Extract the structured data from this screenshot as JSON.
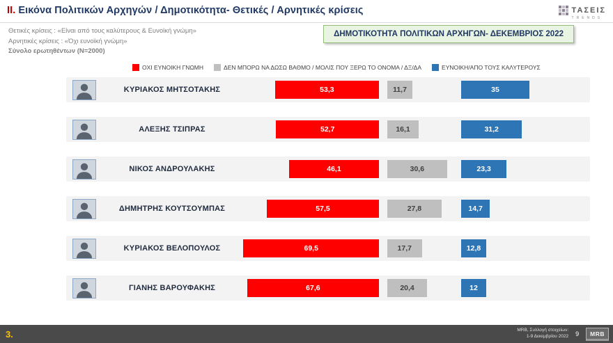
{
  "header": {
    "title_prefix": "II.",
    "title": "Εικόνα Πολιτικών Αρχηγών  / Δημοτικότητα- Θετικές / Αρνητικές κρίσεις",
    "subtitle1": "Θετικές κρίσεις : «Είναι από τους καλύτερους &  Ευνοϊκή γνώμη»",
    "subtitle2": "Αρνητικές κρίσεις : «Όχι ευνοϊκή γνώμη»",
    "subtitle3": "Σύνολο ερωτηθέντων (N=2000)",
    "banner": "ΔΗΜΟΤΙΚΟΤΗΤΑ ΠΟΛΙΤΙΚΩΝ ΑΡΧΗΓΩΝ- ΔΕΚΕΜΒΡΙΟΣ 2022",
    "logo_name": "ΤΑΣΕΙΣ",
    "logo_sub": "TRENDS"
  },
  "legend": [
    {
      "label": "ΟΧΙ ΕΥΝΟΙΚΗ ΓΝΩΜΗ",
      "color": "#fe0000"
    },
    {
      "label": "ΔΕΝ ΜΠΟΡΩ ΝΑ ΔΩΣΩ ΒΑΘΜΟ / ΜΟΛΙΣ ΠΟΥ ΞΕΡΩ ΤΟ ΟΝΟΜΑ / ΔΞ/ΔΑ",
      "color": "#bfbfbf"
    },
    {
      "label": "ΕΥΝΟΙΚΗ/ΑΠΟ ΤΟΥΣ ΚΑΛΥΤΕΡΟΥΣ",
      "color": "#2e75b6"
    }
  ],
  "chart_data": {
    "type": "bar",
    "orientation": "horizontal",
    "title": "ΔΗΜΟΤΙΚΟΤΗΤΑ ΠΟΛΙΤΙΚΩΝ ΑΡΧΗΓΩΝ- ΔΕΚΕΜΒΡΙΟΣ 2022",
    "categories": [
      "ΚΥΡΙΑΚΟΣ ΜΗΤΣΟΤΑΚΗΣ",
      "ΑΛΕΞΗΣ ΤΣΙΠΡΑΣ",
      "ΝΙΚΟΣ ΑΝΔΡΟΥΛΑΚΗΣ",
      "ΔΗΜΗΤΡΗΣ ΚΟΥΤΣΟΥΜΠΑΣ",
      "ΚΥΡΙΑΚΟΣ ΒΕΛΟΠΟΥΛΟΣ",
      "ΓΙΑΝΗΣ ΒΑΡΟΥΦΑΚΗΣ"
    ],
    "series": [
      {
        "name": "ΟΧΙ ΕΥΝΟΙΚΗ ΓΝΩΜΗ",
        "color": "#fe0000",
        "values": [
          53.3,
          52.7,
          46.1,
          57.5,
          69.5,
          67.6
        ]
      },
      {
        "name": "ΔΕΝ ΜΠΟΡΩ ΝΑ ΔΩΣΩ ΒΑΘΜΟ / ΜΟΛΙΣ ΠΟΥ ΞΕΡΩ ΤΟ ΟΝΟΜΑ / ΔΞ/ΔΑ",
        "color": "#bfbfbf",
        "values": [
          11.7,
          16.1,
          30.6,
          27.8,
          17.7,
          20.4
        ]
      },
      {
        "name": "ΕΥΝΟΙΚΗ/ΑΠΟ ΤΟΥΣ ΚΑΛΥΤΕΡΟΥΣ",
        "color": "#2e75b6",
        "values": [
          35,
          31.2,
          23.3,
          14.7,
          12.8,
          12
        ]
      }
    ],
    "value_labels": [
      [
        "53,3",
        "11,7",
        "35"
      ],
      [
        "52,7",
        "16,1",
        "31,2"
      ],
      [
        "46,1",
        "30,6",
        "23,3"
      ],
      [
        "57,5",
        "27,8",
        "14,7"
      ],
      [
        "69,5",
        "17,7",
        "12,8"
      ],
      [
        "67,6",
        "20,4",
        "12"
      ]
    ],
    "xlim": [
      0,
      100
    ],
    "legend_position": "top",
    "grid": false
  },
  "footer": {
    "page_marker": "3.",
    "source_line1": "MRB, Συλλογή στοιχείων:",
    "source_line2": "1-9 Δεκεμβρίου 2022",
    "page_number": "9",
    "logo": "MRB"
  }
}
